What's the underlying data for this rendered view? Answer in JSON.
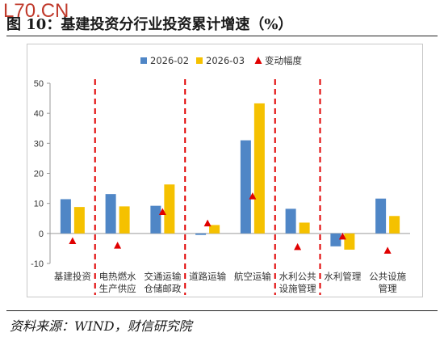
{
  "watermark": "L70.CN",
  "title": "图 10：基建投资分行业投资累计增速（%）",
  "source": "资料来源：WIND，财信研究院",
  "colors": {
    "series1": "#4f86c6",
    "series2": "#f5c100",
    "change": "#e00000",
    "divider": "#e00000",
    "axis": "#9a9a9a",
    "text": "#333333"
  },
  "chart_data": {
    "type": "bar",
    "categories": [
      "基建投资",
      "电热燃水\n生产供应",
      "交通运输\n仓储邮政",
      "道路运输",
      "航空运输",
      "水利公共\n设施管理",
      "水利管理",
      "公共设施\n管理"
    ],
    "series": [
      {
        "name": "2026-02",
        "type": "bar",
        "values": [
          11.4,
          13.1,
          9.2,
          -0.5,
          31.0,
          8.2,
          -4.3,
          11.6
        ]
      },
      {
        "name": "2026-03",
        "type": "bar",
        "values": [
          8.8,
          9.0,
          16.3,
          2.8,
          43.3,
          3.6,
          -5.4,
          5.8
        ]
      },
      {
        "name": "变动幅度",
        "type": "scatter",
        "values": [
          -2.6,
          -4.1,
          7.1,
          3.3,
          12.3,
          -4.6,
          -1.1,
          -5.8
        ]
      }
    ],
    "yticks": [
      -10,
      0,
      10,
      20,
      30,
      40,
      50
    ],
    "ylim": [
      -10,
      50
    ],
    "dividers_after": [
      0,
      2,
      4,
      5
    ],
    "legend_position": "top"
  }
}
